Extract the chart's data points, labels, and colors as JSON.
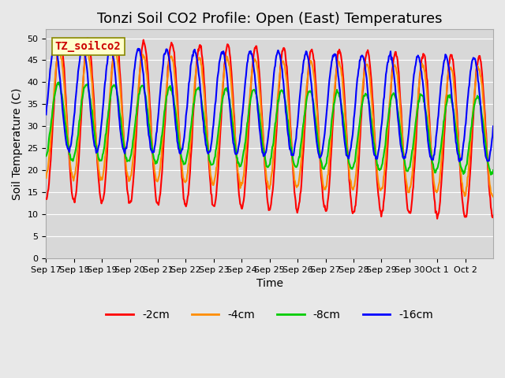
{
  "title": "Tonzi Soil CO2 Profile: Open (East) Temperatures",
  "xlabel": "Time",
  "ylabel": "Soil Temperature (C)",
  "ylim": [
    0,
    52
  ],
  "yticks": [
    0,
    5,
    10,
    15,
    20,
    25,
    30,
    35,
    40,
    45,
    50
  ],
  "series_labels": [
    "-2cm",
    "-4cm",
    "-8cm",
    "-16cm"
  ],
  "series_colors": [
    "#ff0000",
    "#ff8c00",
    "#00cc00",
    "#0000ff"
  ],
  "series_linewidths": [
    1.5,
    1.5,
    1.5,
    1.5
  ],
  "station_label": "TZ_soilco2",
  "station_label_color": "#cc0000",
  "station_box_facecolor": "#ffffcc",
  "station_box_edgecolor": "#888800",
  "background_color": "#e8e8e8",
  "plot_bg_color": "#d8d8d8",
  "grid_color": "#ffffff",
  "title_fontsize": 13,
  "axis_fontsize": 10,
  "tick_fontsize": 8,
  "legend_fontsize": 10,
  "x_tick_labels": [
    "Sep 17",
    "Sep 18",
    "Sep 19",
    "Sep 20",
    "Sep 21",
    "Sep 22",
    "Sep 23",
    "Sep 24",
    "Sep 25",
    "Sep 26",
    "Sep 27",
    "Sep 28",
    "Sep 29",
    "Sep 30",
    "Oct 1",
    "Oct 2"
  ],
  "num_days": 16,
  "samples_per_day": 48
}
